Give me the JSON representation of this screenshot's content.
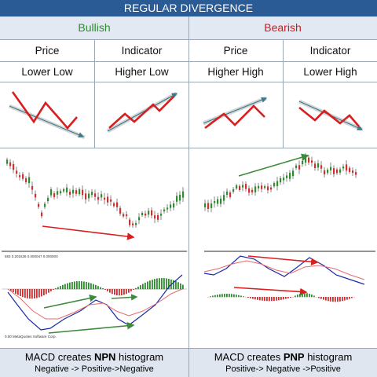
{
  "title": "REGULAR DIVERGENCE",
  "columns": {
    "bullish": {
      "label": "Bullish",
      "color": "#2e8b2e",
      "price_label": "Price",
      "indicator_label": "Indicator",
      "price_pattern": "Lower Low",
      "indicator_pattern": "Higher Low",
      "footer_line1_prefix": "MACD creates ",
      "footer_line1_bold": "NPN",
      "footer_line1_suffix": " histogram",
      "footer_line2": "Negative -> Positive->Negative",
      "chart_axis_label": "683 0.201636 0.000047 0.000000",
      "chart_footer_label": "0.00 MetaQuotes Software Corp."
    },
    "bearish": {
      "label": "Bearish",
      "color": "#d11a1a",
      "price_label": "Price",
      "indicator_label": "Indicator",
      "price_pattern": "Higher High",
      "indicator_pattern": "Lower High",
      "footer_line1_prefix": "MACD creates ",
      "footer_line1_bold": "PNP",
      "footer_line1_suffix": " histogram",
      "footer_line2": "Positive-> Negative ->Positive"
    }
  },
  "colors": {
    "header_bar": "#2a5b94",
    "header_bg": "#e2e9f3",
    "pattern_line": "#d81e1e",
    "trend_arrow": "#3c7a8c",
    "divergence_arrow_red": "#d81e1e",
    "divergence_arrow_green": "#3d8a3d",
    "macd_line": "#1a2aa8",
    "signal_line": "#e86a6a",
    "hist_pos": "#2e8b2e",
    "hist_neg": "#c83232"
  }
}
